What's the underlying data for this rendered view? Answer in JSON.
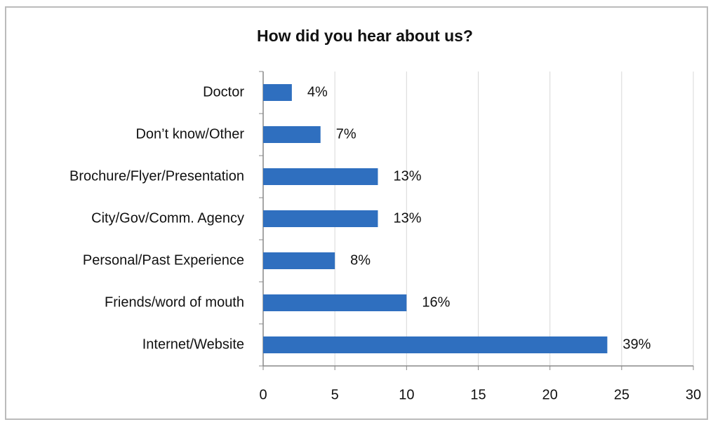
{
  "chart_data": {
    "type": "bar",
    "orientation": "horizontal",
    "title": "How did you hear about us?",
    "categories": [
      "Doctor",
      "Don’t know/Other",
      "Brochure/Flyer/Presentation",
      "City/Gov/Comm. Agency",
      "Personal/Past Experience",
      "Friends/word of mouth",
      "Internet/Website"
    ],
    "values": [
      2,
      4,
      8,
      8,
      5,
      10,
      24
    ],
    "annotations": [
      "4%",
      "7%",
      "13%",
      "13%",
      "8%",
      "16%",
      "39%"
    ],
    "color": "#2f6fbf",
    "xlim": [
      0,
      30
    ],
    "xticks": [
      0,
      5,
      10,
      15,
      20,
      25,
      30
    ],
    "grid": true
  }
}
